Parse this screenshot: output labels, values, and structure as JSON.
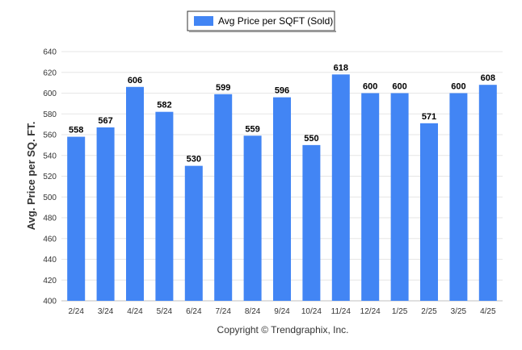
{
  "chart_data": {
    "type": "bar",
    "categories": [
      "2/24",
      "3/24",
      "4/24",
      "5/24",
      "6/24",
      "7/24",
      "8/24",
      "9/24",
      "10/24",
      "11/24",
      "12/24",
      "1/25",
      "2/25",
      "3/25",
      "4/25"
    ],
    "series": [
      {
        "name": "Avg Price per SQFT (Sold)",
        "values": [
          558,
          567,
          606,
          582,
          530,
          599,
          559,
          596,
          550,
          618,
          600,
          600,
          571,
          600,
          608
        ],
        "color": "#4285f4"
      }
    ],
    "ylabel": "Avg. Price per SQ. FT.",
    "xlabel": "",
    "ylim": [
      400,
      640
    ],
    "yticks": [
      400,
      420,
      440,
      460,
      480,
      500,
      520,
      540,
      560,
      580,
      600,
      620,
      640
    ],
    "grid": true,
    "legend_position": "top-center",
    "data_labels": true
  },
  "credit": "Copyright © Trendgraphix, Inc."
}
